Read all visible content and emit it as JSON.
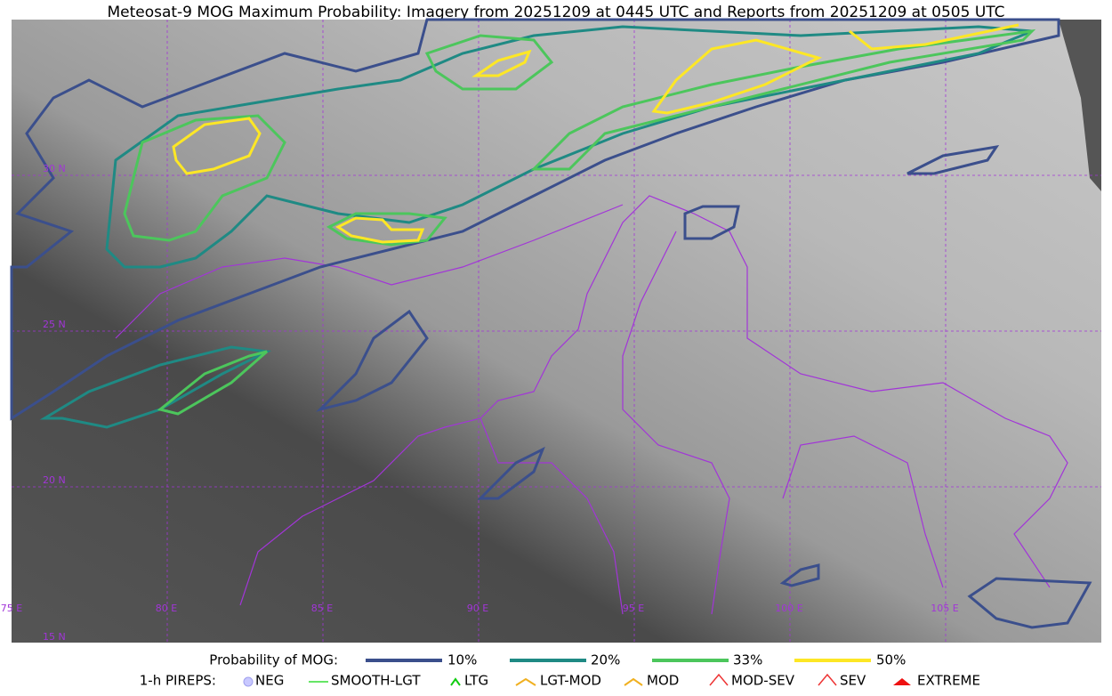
{
  "title": "Meteosat-9 MOG Maximum Probability: Imagery from 20251209 at 0445 UTC and Reports from 20251209 at 0505 UTC",
  "map": {
    "lat_labels": [
      "30 N",
      "25 N",
      "20 N",
      "15 N"
    ],
    "lon_labels": [
      "75 E",
      "80 E",
      "85 E",
      "90 E",
      "95 E",
      "100 E",
      "105 E"
    ]
  },
  "legend": {
    "probability": {
      "title": "Probability of MOG:",
      "items": [
        "10%",
        "20%",
        "33%",
        "50%"
      ]
    },
    "pireps": {
      "title": "1-h PIREPS:",
      "items": [
        "NEG",
        "SMOOTH-LGT",
        "LTG",
        "LGT-MOD",
        "MOD",
        "MOD-SEV",
        "SEV",
        "EXTREME"
      ]
    }
  }
}
